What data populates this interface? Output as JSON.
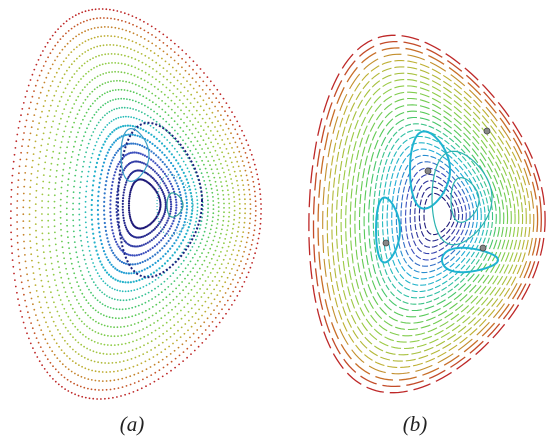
{
  "panels": [
    {
      "id": "a",
      "caption": "(a)",
      "style": "dotted"
    },
    {
      "id": "b",
      "caption": "(b)",
      "style": "dashed",
      "markers": 4
    }
  ],
  "colors": {
    "outer": "#c0392b",
    "mid": "#8fd14f",
    "inner": "#1fb3d1",
    "core": "#1a237e",
    "marker": "#777777"
  }
}
